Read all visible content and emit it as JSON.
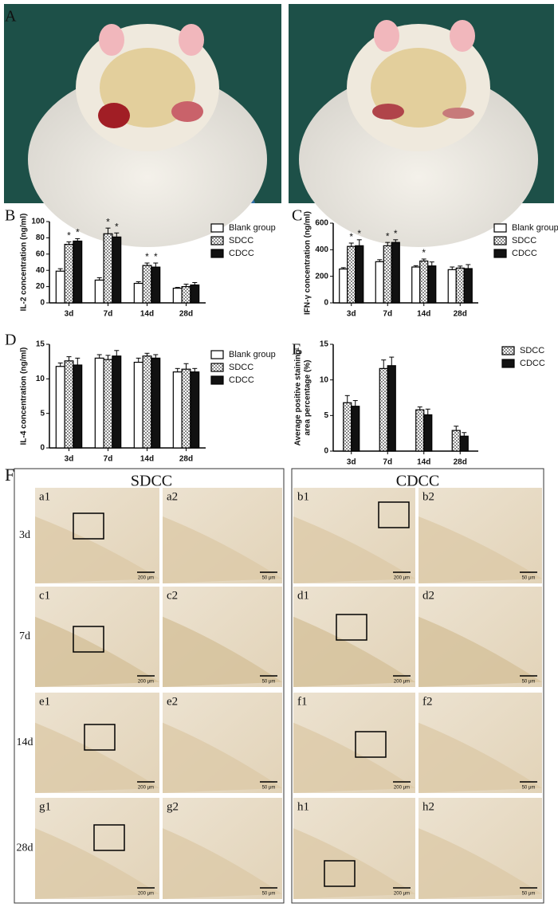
{
  "panel_labels": [
    "A",
    "B",
    "C",
    "D",
    "E",
    "F"
  ],
  "chart_data": [
    {
      "type": "bar",
      "ylabel": [
        "IL-2 concentration (ng/ml)"
      ],
      "categories": [
        "3d",
        "7d",
        "14d",
        "28d"
      ],
      "ylim": [
        0,
        100
      ],
      "yticks": [
        0,
        20,
        40,
        60,
        80,
        100
      ],
      "series": [
        {
          "name": "Blank group",
          "color": "#ffffff",
          "values": [
            39,
            28,
            24,
            18
          ],
          "errors": [
            3,
            3,
            2,
            1
          ],
          "significance": [
            null,
            null,
            null,
            null
          ]
        },
        {
          "name": "SDCC",
          "color": "#cccccc",
          "pattern": "checker",
          "values": [
            72,
            85,
            46,
            20
          ],
          "errors": [
            3,
            7,
            3,
            3
          ],
          "significance": [
            "*",
            "*",
            "*",
            null
          ]
        },
        {
          "name": "CDCC",
          "color": "#111111",
          "values": [
            76,
            81,
            44,
            22
          ],
          "errors": [
            3,
            5,
            5,
            3
          ],
          "significance": [
            "*",
            "*",
            "*",
            null
          ]
        }
      ]
    },
    {
      "type": "bar",
      "ylabel": [
        "IFN-γ  concentration (ng/ml)"
      ],
      "categories": [
        "3d",
        "7d",
        "14d",
        "28d"
      ],
      "ylim": [
        0,
        600
      ],
      "yticks": [
        0,
        200,
        400,
        600
      ],
      "series": [
        {
          "name": "Blank group",
          "color": "#ffffff",
          "values": [
            255,
            310,
            270,
            250
          ],
          "errors": [
            10,
            15,
            10,
            20
          ],
          "significance": [
            null,
            null,
            null,
            null
          ]
        },
        {
          "name": "SDCC",
          "color": "#cccccc",
          "pattern": "checker",
          "values": [
            425,
            430,
            315,
            262
          ],
          "errors": [
            25,
            25,
            15,
            15
          ],
          "significance": [
            "*",
            "*",
            "*",
            null
          ]
        },
        {
          "name": "CDCC",
          "color": "#111111",
          "values": [
            430,
            455,
            278,
            258
          ],
          "errors": [
            45,
            20,
            30,
            30
          ],
          "significance": [
            "*",
            "*",
            null,
            null
          ]
        }
      ]
    },
    {
      "type": "bar",
      "ylabel": [
        "IL-4 concentration (ng/ml)"
      ],
      "categories": [
        "3d",
        "7d",
        "14d",
        "28d"
      ],
      "ylim": [
        0,
        15
      ],
      "yticks": [
        0,
        5,
        10,
        15
      ],
      "series": [
        {
          "name": "Blank group",
          "color": "#ffffff",
          "values": [
            11.8,
            13,
            12.4,
            11
          ],
          "errors": [
            0.5,
            0.5,
            0.6,
            0.5
          ],
          "significance": [
            null,
            null,
            null,
            null
          ]
        },
        {
          "name": "SDCC",
          "color": "#cccccc",
          "pattern": "checker",
          "values": [
            12.6,
            12.8,
            13.3,
            11.4
          ],
          "errors": [
            0.6,
            0.6,
            0.4,
            0.8
          ],
          "significance": [
            null,
            null,
            null,
            null
          ]
        },
        {
          "name": "CDCC",
          "color": "#111111",
          "values": [
            12,
            13.3,
            13,
            11
          ],
          "errors": [
            1,
            0.8,
            0.5,
            0.5
          ],
          "significance": [
            null,
            null,
            null,
            null
          ]
        }
      ]
    },
    {
      "type": "bar",
      "ylabel": [
        "Average positive staining",
        "area percentage (%)"
      ],
      "categories": [
        "3d",
        "7d",
        "14d",
        "28d"
      ],
      "ylim": [
        0,
        15
      ],
      "yticks": [
        0,
        5,
        10,
        15
      ],
      "series": [
        {
          "name": "SDCC",
          "color": "#cccccc",
          "pattern": "checker",
          "values": [
            6.8,
            11.6,
            5.8,
            2.9
          ],
          "errors": [
            1,
            1.2,
            0.4,
            0.6
          ],
          "significance": [
            null,
            null,
            null,
            null
          ]
        },
        {
          "name": "CDCC",
          "color": "#111111",
          "values": [
            6.3,
            12,
            5.1,
            2.1
          ],
          "errors": [
            0.8,
            1.2,
            0.8,
            0.5
          ],
          "significance": [
            null,
            null,
            null,
            null
          ]
        }
      ]
    }
  ],
  "histology": {
    "groups": [
      "SDCC",
      "CDCC"
    ],
    "rows": [
      "3d",
      "7d",
      "14d",
      "28d"
    ],
    "tiles": [
      [
        "a1",
        "a2",
        "b1",
        "b2"
      ],
      [
        "c1",
        "c2",
        "d1",
        "d2"
      ],
      [
        "e1",
        "e2",
        "f1",
        "f2"
      ],
      [
        "g1",
        "g2",
        "h1",
        "h2"
      ]
    ],
    "scale_bars": [
      "200 μm",
      "50 μm"
    ]
  }
}
